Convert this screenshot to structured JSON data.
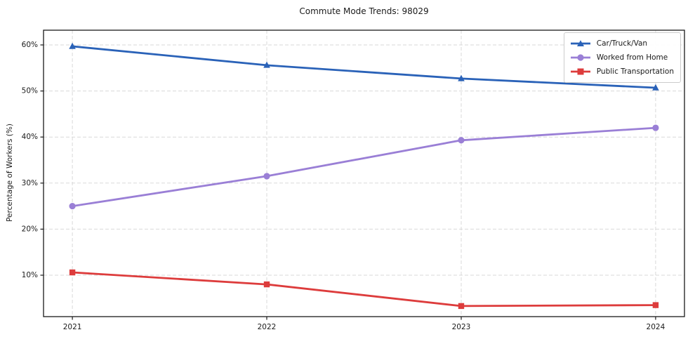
{
  "chart_data": {
    "type": "line",
    "title": "Commute Mode Trends: 98029",
    "xlabel": "",
    "ylabel": "Percentage of Workers (%)",
    "x": [
      2021,
      2022,
      2023,
      2024
    ],
    "x_tick_labels": [
      "2021",
      "2022",
      "2023",
      "2024"
    ],
    "y_ticks": [
      10,
      20,
      30,
      40,
      50,
      60
    ],
    "y_tick_labels": [
      "10%",
      "20%",
      "30%",
      "40%",
      "50%",
      "60%"
    ],
    "ylim": [
      1.0,
      63.2
    ],
    "grid": true,
    "grid_style": "dashed",
    "legend_position": "upper right",
    "colors": {
      "grid": "#d9d9d9",
      "spine": "#1a1a1a",
      "tick_text": "#1a1a1a",
      "background": "#ffffff"
    },
    "series": [
      {
        "name": "Car/Truck/Van",
        "color": "#2a62b8",
        "marker": "triangle",
        "values": [
          59.7,
          55.6,
          52.7,
          50.7
        ]
      },
      {
        "name": "Worked from Home",
        "color": "#9a7fd6",
        "marker": "circle",
        "values": [
          25.0,
          31.5,
          39.3,
          42.0
        ]
      },
      {
        "name": "Public Transportation",
        "color": "#dd3c3c",
        "marker": "square",
        "values": [
          10.6,
          8.0,
          3.3,
          3.5
        ]
      }
    ]
  }
}
